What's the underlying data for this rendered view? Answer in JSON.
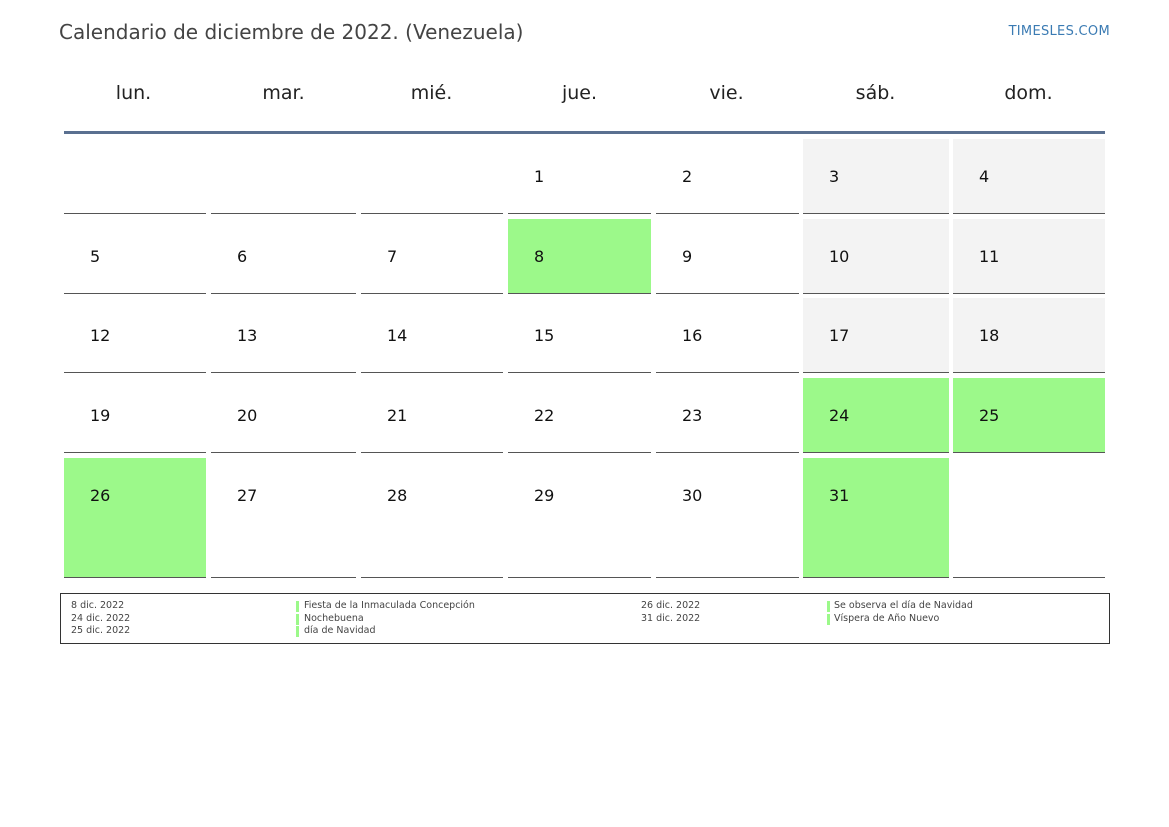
{
  "header": {
    "title": "Calendario de diciembre de 2022. (Venezuela)",
    "site": "TIMESLES.COM"
  },
  "weekdays": [
    "lun.",
    "mar.",
    "mié.",
    "jue.",
    "vie.",
    "sáb.",
    "dom."
  ],
  "colors": {
    "holiday": "#9cf98a",
    "weekend": "#f3f3f3",
    "header_rule": "#5a7090",
    "site_link": "#3b7bb3"
  },
  "weeks": [
    [
      null,
      null,
      null,
      {
        "day": "1"
      },
      {
        "day": "2"
      },
      {
        "day": "3",
        "weekend": true
      },
      {
        "day": "4",
        "weekend": true
      }
    ],
    [
      {
        "day": "5"
      },
      {
        "day": "6"
      },
      {
        "day": "7"
      },
      {
        "day": "8",
        "holiday": true
      },
      {
        "day": "9"
      },
      {
        "day": "10",
        "weekend": true
      },
      {
        "day": "11",
        "weekend": true
      }
    ],
    [
      {
        "day": "12"
      },
      {
        "day": "13"
      },
      {
        "day": "14"
      },
      {
        "day": "15"
      },
      {
        "day": "16"
      },
      {
        "day": "17",
        "weekend": true
      },
      {
        "day": "18",
        "weekend": true
      }
    ],
    [
      {
        "day": "19"
      },
      {
        "day": "20"
      },
      {
        "day": "21"
      },
      {
        "day": "22"
      },
      {
        "day": "23"
      },
      {
        "day": "24",
        "holiday": true
      },
      {
        "day": "25",
        "holiday": true
      }
    ],
    [
      {
        "day": "26",
        "holiday": true
      },
      {
        "day": "27"
      },
      {
        "day": "28"
      },
      {
        "day": "29"
      },
      {
        "day": "30"
      },
      {
        "day": "31",
        "holiday": true
      },
      null
    ]
  ],
  "legend": {
    "left": [
      {
        "date": "8 dic. 2022",
        "name": "Fiesta de la Inmaculada Concepción"
      },
      {
        "date": "24 dic. 2022",
        "name": "Nochebuena"
      },
      {
        "date": "25 dic. 2022",
        "name": "día de Navidad"
      }
    ],
    "right": [
      {
        "date": "26 dic. 2022",
        "name": "Se observa el día de Navidad"
      },
      {
        "date": "31 dic. 2022",
        "name": "Víspera de Año Nuevo"
      }
    ]
  }
}
